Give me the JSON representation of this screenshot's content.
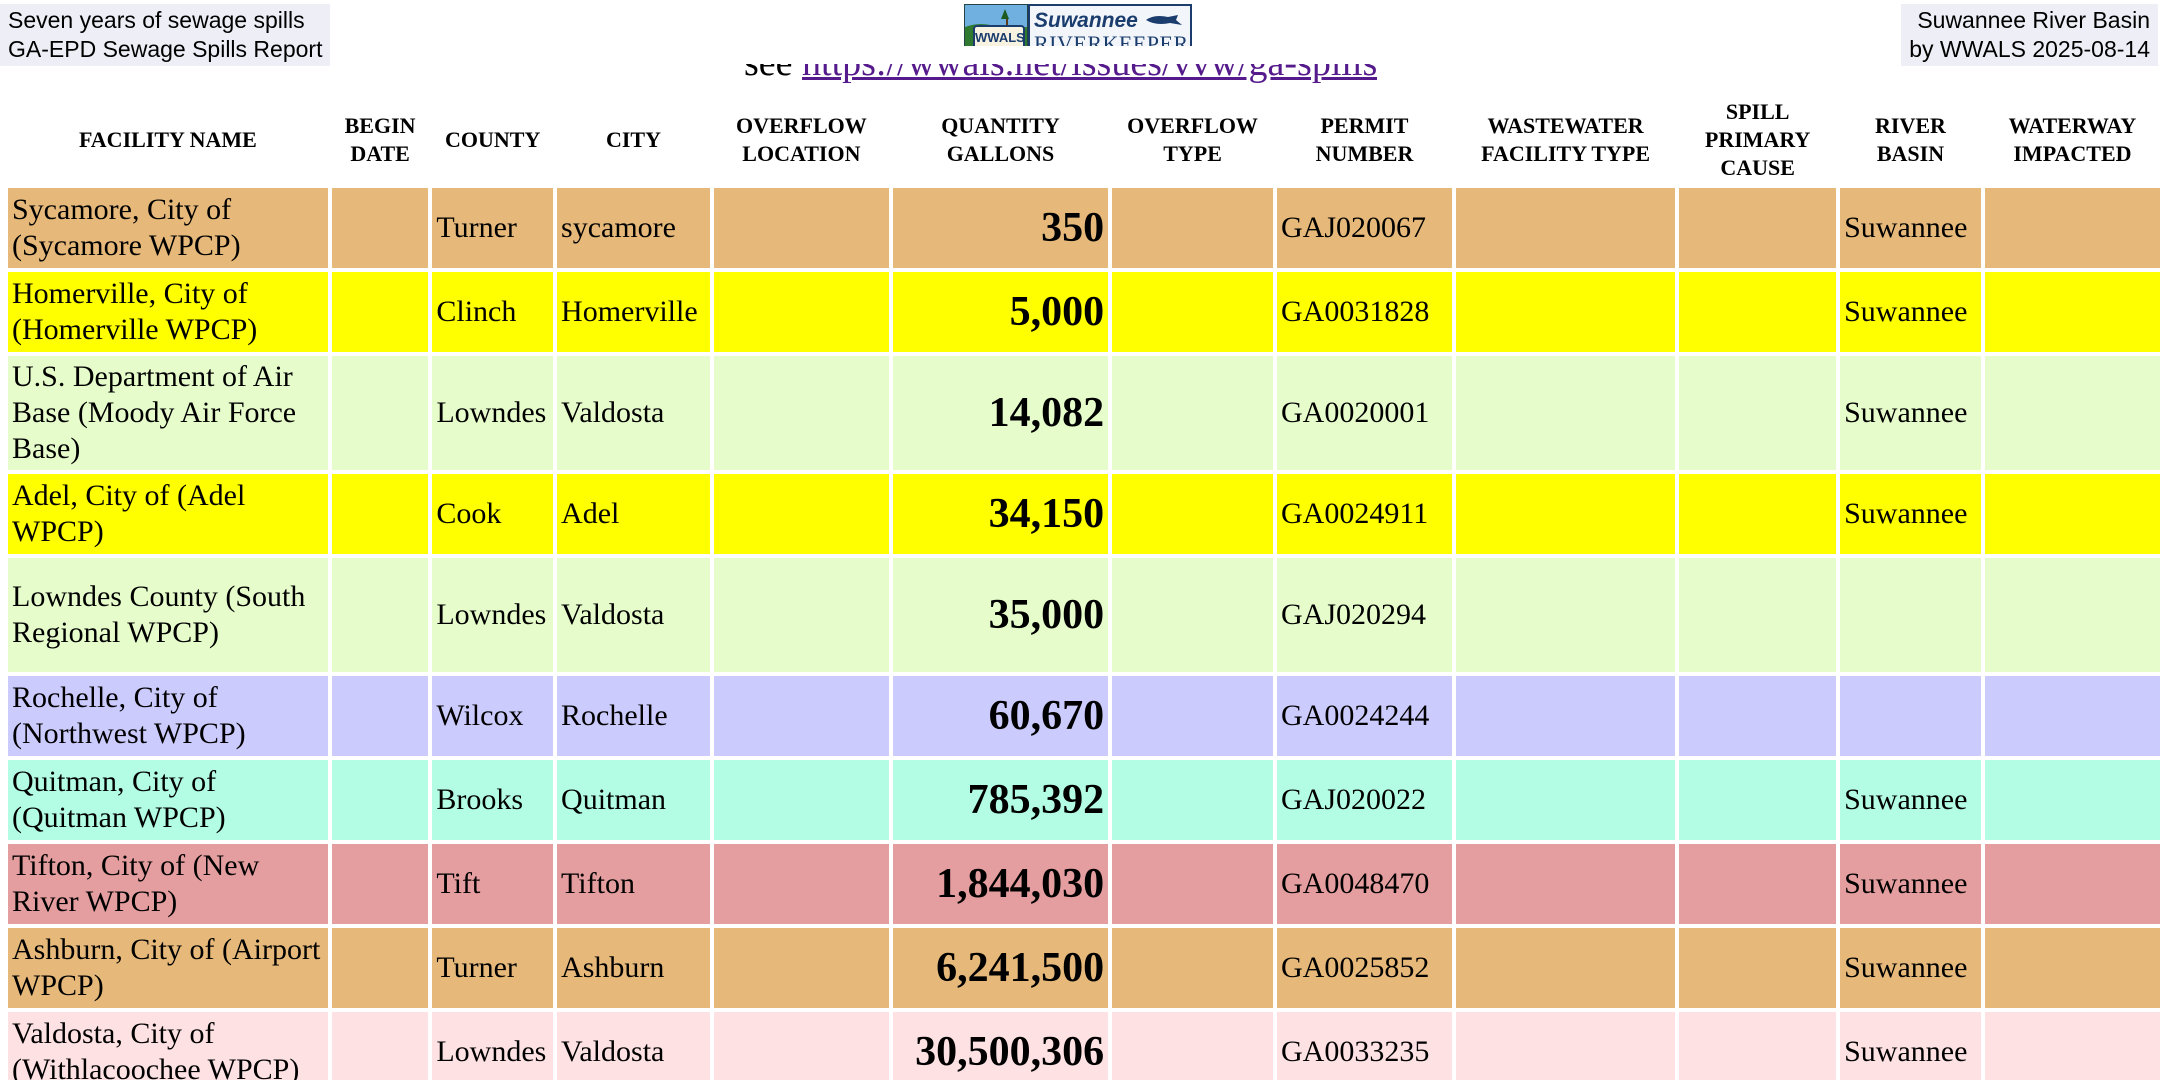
{
  "header": {
    "left_line1": "Seven years of sewage spills",
    "left_line2": "GA-EPD Sewage Spills Report",
    "right_line1": "Suwannee River Basin",
    "right_line2": "by WWALS 2025-08-14",
    "logo_badge": "WWALS",
    "logo_line1": "Suwannee",
    "logo_line2": "RIVERKEEPER",
    "see_word": "see ",
    "see_link": "https://wwals.net/issues/vvw/ga-spills"
  },
  "columns": [
    {
      "key": "facility",
      "label": "FACILITY NAME"
    },
    {
      "key": "begin_date",
      "label": "BEGIN DATE"
    },
    {
      "key": "county",
      "label": "COUNTY"
    },
    {
      "key": "city",
      "label": "CITY"
    },
    {
      "key": "overflow_location",
      "label": "OVERFLOW LOCATION"
    },
    {
      "key": "quantity",
      "label": "QUANTITY GALLONS"
    },
    {
      "key": "overflow_type",
      "label": "OVERFLOW TYPE"
    },
    {
      "key": "permit",
      "label": "PERMIT NUMBER"
    },
    {
      "key": "facility_type",
      "label": "WASTEWATER FACILITY TYPE"
    },
    {
      "key": "cause",
      "label": "SPILL PRIMARY CAUSE"
    },
    {
      "key": "basin",
      "label": "RIVER BASIN"
    },
    {
      "key": "waterway",
      "label": "WATERWAY IMPACTED"
    }
  ],
  "rows": [
    {
      "facility": "Sycamore, City of (Sycamore WPCP)",
      "begin_date": "",
      "county": "Turner",
      "city": "sycamore",
      "overflow_location": "",
      "quantity": "350",
      "overflow_type": "",
      "permit": "GAJ020067",
      "facility_type": "",
      "cause": "",
      "basin": "Suwannee",
      "waterway": "",
      "color": "#e6b97a"
    },
    {
      "facility": "Homerville, City of (Homerville WPCP)",
      "begin_date": "",
      "county": "Clinch",
      "city": "Homerville",
      "overflow_location": "",
      "quantity": "5,000",
      "overflow_type": "",
      "permit": "GA0031828",
      "facility_type": "",
      "cause": "",
      "basin": "Suwannee",
      "waterway": "",
      "color": "#ffff00"
    },
    {
      "facility": "U.S. Department of Air Base (Moody Air Force Base)",
      "begin_date": "",
      "county": "Lowndes",
      "city": "Valdosta",
      "overflow_location": "",
      "quantity": "14,082",
      "overflow_type": "",
      "permit": "GA0020001",
      "facility_type": "",
      "cause": "",
      "basin": "Suwannee",
      "waterway": "",
      "color": "#e6fdcb"
    },
    {
      "facility": "Adel, City of (Adel WPCP)",
      "begin_date": "",
      "county": "Cook",
      "city": "Adel",
      "overflow_location": "",
      "quantity": "34,150",
      "overflow_type": "",
      "permit": "GA0024911",
      "facility_type": "",
      "cause": "",
      "basin": "Suwannee",
      "waterway": "",
      "color": "#ffff00"
    },
    {
      "facility": "Lowndes County (South Regional WPCP)",
      "begin_date": "",
      "county": "Lowndes",
      "city": "Valdosta",
      "overflow_location": "",
      "quantity": "35,000",
      "overflow_type": "",
      "permit": "GAJ020294",
      "facility_type": "",
      "cause": "",
      "basin": "",
      "waterway": "",
      "color": "#e6fdcb"
    },
    {
      "facility": "Rochelle, City of (Northwest WPCP)",
      "begin_date": "",
      "county": "Wilcox",
      "city": "Rochelle",
      "overflow_location": "",
      "quantity": "60,670",
      "overflow_type": "",
      "permit": "GA0024244",
      "facility_type": "",
      "cause": "",
      "basin": "",
      "waterway": "",
      "color": "#cccbfd"
    },
    {
      "facility": "Quitman, City of (Quitman WPCP)",
      "begin_date": "",
      "county": "Brooks",
      "city": "Quitman",
      "overflow_location": "",
      "quantity": "785,392",
      "overflow_type": "",
      "permit": "GAJ020022",
      "facility_type": "",
      "cause": "",
      "basin": "Suwannee",
      "waterway": "",
      "color": "#b3fde4"
    },
    {
      "facility": "Tifton, City of (New River WPCP)",
      "begin_date": "",
      "county": "Tift",
      "city": "Tifton",
      "overflow_location": "",
      "quantity": "1,844,030",
      "overflow_type": "",
      "permit": "GA0048470",
      "facility_type": "",
      "cause": "",
      "basin": "Suwannee",
      "waterway": "",
      "color": "#e59e9f"
    },
    {
      "facility": "Ashburn, City of (Airport WPCP)",
      "begin_date": "",
      "county": "Turner",
      "city": "Ashburn",
      "overflow_location": "",
      "quantity": "6,241,500",
      "overflow_type": "",
      "permit": "GA0025852",
      "facility_type": "",
      "cause": "",
      "basin": "Suwannee",
      "waterway": "",
      "color": "#e6b97a"
    },
    {
      "facility": "Valdosta, City of (Withlacoochee WPCP)",
      "begin_date": "",
      "county": "Lowndes",
      "city": "Valdosta",
      "overflow_location": "",
      "quantity": "30,500,306",
      "overflow_type": "",
      "permit": "GA0033235",
      "facility_type": "",
      "cause": "",
      "basin": "Suwannee",
      "waterway": "",
      "color": "#fde1e3"
    }
  ]
}
